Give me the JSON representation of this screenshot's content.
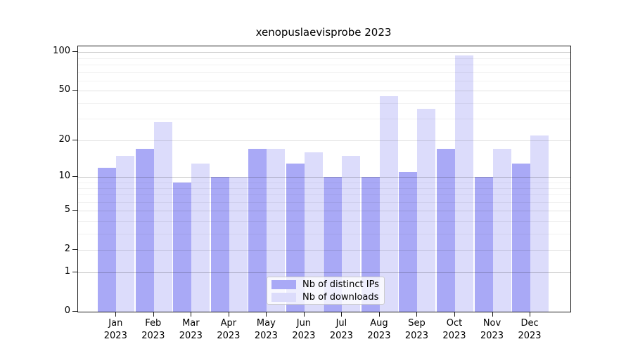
{
  "chart_data": {
    "type": "bar",
    "title": "xenopuslaevisprobe 2023",
    "categories": [
      "Jan 2023",
      "Feb 2023",
      "Mar 2023",
      "Apr 2023",
      "May 2023",
      "Jun 2023",
      "Jul 2023",
      "Aug 2023",
      "Sep 2023",
      "Oct 2023",
      "Nov 2023",
      "Dec 2023"
    ],
    "months": [
      "Jan",
      "Feb",
      "Mar",
      "Apr",
      "May",
      "Jun",
      "Jul",
      "Aug",
      "Sep",
      "Oct",
      "Nov",
      "Dec"
    ],
    "year": "2023",
    "series": [
      {
        "name": "Nb of distinct IPs",
        "color": "#a9a9f6",
        "values": [
          12,
          17,
          9,
          10,
          17,
          13,
          10,
          10,
          11,
          17,
          10,
          13
        ]
      },
      {
        "name": "Nb of downloads",
        "color": "#dcdcfb",
        "values": [
          15,
          28,
          13,
          10,
          17,
          16,
          15,
          45,
          36,
          94,
          17,
          22
        ]
      }
    ],
    "xlabel": "",
    "ylabel": "",
    "yscale": "log1p",
    "yticks": [
      0,
      1,
      2,
      5,
      10,
      20,
      50,
      100
    ],
    "yticks_minor": [
      3,
      4,
      6,
      7,
      8,
      9,
      30,
      40,
      60,
      70,
      80,
      90
    ],
    "ylim": [
      0,
      111
    ],
    "grid": true,
    "legend_position": "lower center",
    "colors": {
      "grid_major": "#c9c9c9",
      "grid_mid": "#e2e2e2",
      "grid_minor": "#f2f2f2",
      "axis": "#1a1a1a",
      "background": "#ffffff"
    }
  }
}
